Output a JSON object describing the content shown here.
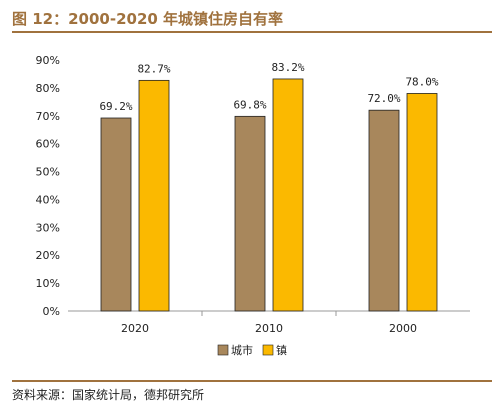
{
  "header": {
    "title": "图 12：2000-2020 年城镇住房自有率"
  },
  "footer": {
    "source": "资料来源：国家统计局，德邦研究所"
  },
  "chart_data": {
    "type": "bar",
    "categories": [
      "2020",
      "2010",
      "2000"
    ],
    "series": [
      {
        "name": "城市",
        "values": [
          69.2,
          69.8,
          72.0
        ],
        "labels": [
          "69.2%",
          "69.8%",
          "72.0%"
        ],
        "color": "#a8875c"
      },
      {
        "name": "镇",
        "values": [
          82.7,
          83.2,
          78.0
        ],
        "labels": [
          "82.7%",
          "83.2%",
          "78.0%"
        ],
        "color": "#fbb900"
      }
    ],
    "ylim": [
      0,
      90
    ],
    "yticks": [
      "0%",
      "10%",
      "20%",
      "30%",
      "40%",
      "50%",
      "60%",
      "70%",
      "80%",
      "90%"
    ],
    "grid": false,
    "legend": "bottom"
  }
}
